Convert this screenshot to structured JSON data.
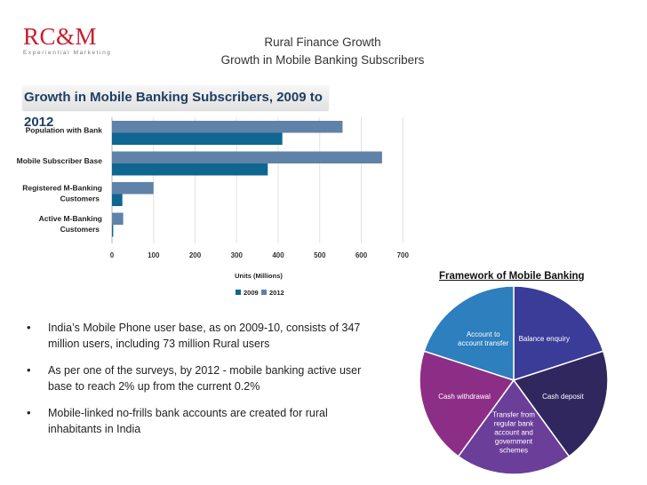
{
  "logo": {
    "main": "RC&M",
    "sub": "Experiential Marketing"
  },
  "slide": {
    "title_line1": "Rural Finance Growth",
    "title_line2": "Growth in Mobile Banking Subscribers"
  },
  "chart_heading": "Growth in Mobile Banking Subscribers, 2009 to 2012",
  "chart_data": [
    {
      "type": "bar",
      "orientation": "horizontal",
      "title": "Growth in Mobile Banking Subscribers, 2009 to 2012",
      "categories": [
        [
          "Population with Bank"
        ],
        [
          "Mobile Subscriber Base"
        ],
        [
          "Registered M-Banking",
          "Customers"
        ],
        [
          "Active M-Banking",
          "Customers"
        ]
      ],
      "series": [
        {
          "name": "2009",
          "color": "#0f6690",
          "values": [
            410,
            375,
            25,
            3
          ]
        },
        {
          "name": "2012",
          "color": "#5f82a8",
          "values": [
            555,
            650,
            100,
            27
          ]
        }
      ],
      "xlabel": "Units (Millions)",
      "xlim": [
        0,
        700
      ],
      "xticks": [
        0,
        100,
        200,
        300,
        400,
        500,
        600,
        700
      ],
      "grid": true,
      "legend_position": "bottom"
    },
    {
      "type": "pie",
      "title": "Framework of Mobile Banking",
      "slices": [
        {
          "label": [
            "Balance enquiry"
          ],
          "value": 20,
          "color": "#3b3c98"
        },
        {
          "label": [
            "Cash deposit"
          ],
          "value": 20,
          "color": "#30275e"
        },
        {
          "label": [
            "Transfer from",
            "regular bank",
            "account and",
            "government",
            "schemes"
          ],
          "value": 20,
          "color": "#6b3e9a"
        },
        {
          "label": [
            "Cash withdrawal"
          ],
          "value": 20,
          "color": "#8d2e86"
        },
        {
          "label": [
            "Account to",
            "account transfer"
          ],
          "value": 20,
          "color": "#2d7fbd"
        }
      ]
    }
  ],
  "bullets": [
    "India’s Mobile Phone user base, as on 2009-10, consists of 347 million users, including 73 million Rural users",
    "As per one of the surveys, by 2012 - mobile banking active user base to reach 2% up from the current 0.2%",
    "Mobile-linked no-frills bank accounts are created for rural inhabitants in India"
  ]
}
